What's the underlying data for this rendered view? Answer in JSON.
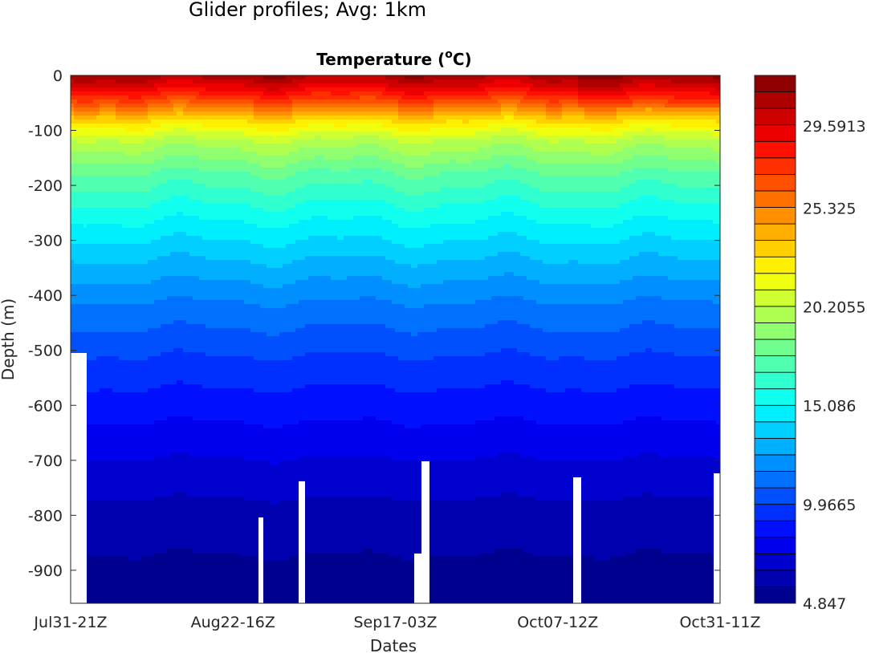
{
  "figure": {
    "suptitle": "Glider profiles; Avg: 1km"
  },
  "chart_data": {
    "type": "heatmap",
    "title": "Temperature  (",
    "title_unit_degree": "o",
    "title_unit": "C)",
    "xlabel": "Dates",
    "ylabel": "Depth  (m)",
    "x_ticks": [
      "Jul31-21Z",
      "Aug22-16Z",
      "Sep17-03Z",
      "Oct07-12Z",
      "Oct31-11Z"
    ],
    "y_ticks": [
      0,
      -100,
      -200,
      -300,
      -400,
      -500,
      -600,
      -700,
      -800,
      -900
    ],
    "ylim": [
      -960,
      0
    ],
    "colorbar": {
      "min": 4.847,
      "max": 32.2,
      "tick_labels": [
        "4.847",
        "9.9665",
        "15.086",
        "20.2055",
        "25.325",
        "29.5913"
      ],
      "tick_values": [
        4.847,
        9.9665,
        15.086,
        20.2055,
        25.325,
        29.5913
      ],
      "levels": 32,
      "colormap": "jet"
    },
    "profile": {
      "depth_m": [
        0,
        20,
        50,
        80,
        120,
        180,
        250,
        330,
        420,
        520,
        620,
        720,
        820,
        960
      ],
      "temperature_c": [
        31.0,
        29.5,
        26.5,
        23.0,
        20.0,
        17.5,
        15.5,
        13.5,
        11.5,
        9.8,
        8.4,
        7.1,
        6.0,
        5.2
      ]
    },
    "grid": false,
    "colorbar_position": "right"
  }
}
